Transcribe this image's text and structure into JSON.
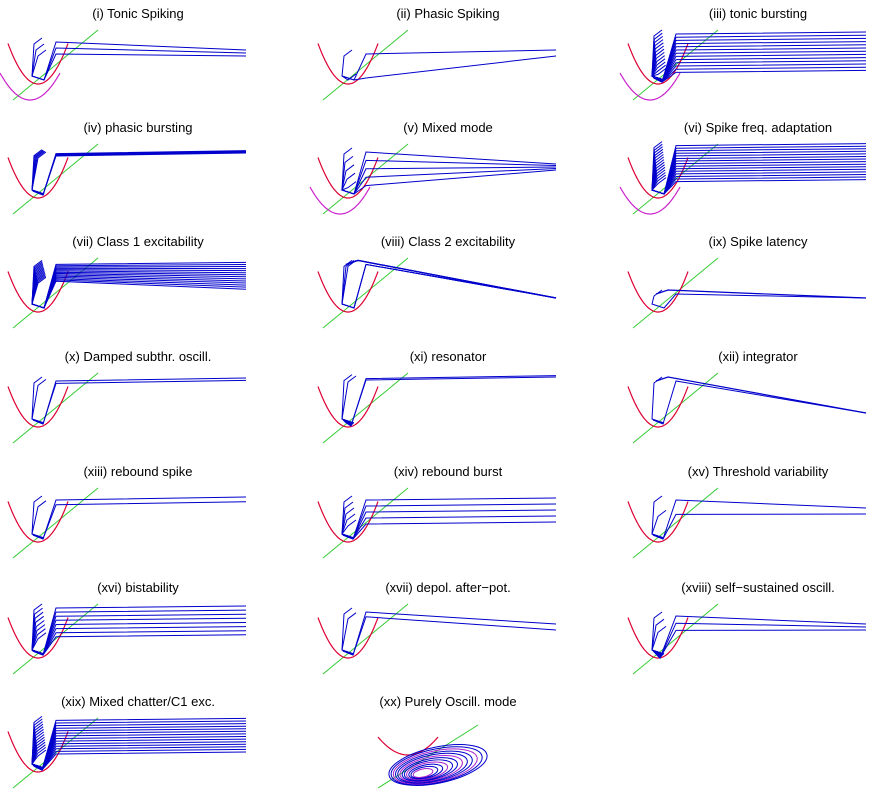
{
  "colors": {
    "trajectory": "#0000cc",
    "v_nullcline": "#dd0033",
    "v_nullcline_alt": "#cc22cc",
    "u_nullcline": "#33cc33",
    "background": "#ffffff"
  },
  "chart_data": [
    {
      "type": "line",
      "title": "(i) Tonic Spiking",
      "trajectory_count": 3,
      "spread": 0.25,
      "reset_level": 0.85,
      "tail_shape": "converge",
      "secondary_nullcline": true,
      "loops": 0
    },
    {
      "type": "line",
      "title": "(ii) Phasic Spiking",
      "trajectory_count": 2,
      "spread": 0.5,
      "reset_level": 0.7,
      "tail_shape": "converge",
      "secondary_nullcline": false,
      "loops": 0
    },
    {
      "type": "line",
      "title": "(iii) tonic bursting",
      "trajectory_count": 13,
      "spread": 0.8,
      "reset_level": 0.95,
      "tail_shape": "parallel",
      "secondary_nullcline": true,
      "loops": 2
    },
    {
      "type": "line",
      "title": "(iv) phasic bursting",
      "trajectory_count": 5,
      "spread": 0.05,
      "reset_level": 0.88,
      "tail_shape": "flat",
      "secondary_nullcline": false,
      "loops": 1
    },
    {
      "type": "line",
      "title": "(v) Mixed mode",
      "trajectory_count": 5,
      "spread": 0.7,
      "reset_level": 0.9,
      "tail_shape": "converge",
      "secondary_nullcline": true,
      "loops": 0
    },
    {
      "type": "line",
      "title": "(vi) Spike freq. adaptation",
      "trajectory_count": 15,
      "spread": 0.75,
      "reset_level": 0.98,
      "tail_shape": "parallel",
      "secondary_nullcline": true,
      "loops": 0
    },
    {
      "type": "line",
      "title": "(vii) Class 1 excitability",
      "trajectory_count": 14,
      "spread": 0.35,
      "reset_level": 0.92,
      "tail_shape": "fan",
      "secondary_nullcline": false,
      "loops": 0
    },
    {
      "type": "line",
      "title": "(viii) Class 2 excitability",
      "trajectory_count": 3,
      "spread": 0.0,
      "reset_level": 0.92,
      "tail_shape": "triangle",
      "secondary_nullcline": false,
      "loops": 0
    },
    {
      "type": "line",
      "title": "(ix) Spike latency",
      "trajectory_count": 1,
      "spread": 0.0,
      "reset_level": 0.55,
      "tail_shape": "triangle",
      "secondary_nullcline": false,
      "loops": 0
    },
    {
      "type": "line",
      "title": "(x) Damped subthr. oscill.",
      "trajectory_count": 2,
      "spread": 0.05,
      "reset_level": 0.9,
      "tail_shape": "flat",
      "secondary_nullcline": false,
      "loops": 1
    },
    {
      "type": "line",
      "title": "(xi) resonator",
      "trajectory_count": 2,
      "spread": 0.03,
      "reset_level": 0.93,
      "tail_shape": "flat",
      "secondary_nullcline": false,
      "loops": 3
    },
    {
      "type": "line",
      "title": "(xii) integrator",
      "trajectory_count": 1,
      "spread": 0.0,
      "reset_level": 0.9,
      "tail_shape": "triangle",
      "secondary_nullcline": false,
      "loops": 1
    },
    {
      "type": "line",
      "title": "(xiii) rebound spike",
      "trajectory_count": 2,
      "spread": 0.1,
      "reset_level": 0.85,
      "tail_shape": "flat",
      "secondary_nullcline": false,
      "loops": 1
    },
    {
      "type": "line",
      "title": "(xiv) rebound burst",
      "trajectory_count": 5,
      "spread": 0.5,
      "reset_level": 0.85,
      "tail_shape": "parallel",
      "secondary_nullcline": false,
      "loops": 1
    },
    {
      "type": "line",
      "title": "(xv) Threshold variability",
      "trajectory_count": 2,
      "spread": 0.3,
      "reset_level": 0.85,
      "tail_shape": "converge",
      "secondary_nullcline": false,
      "loops": 1
    },
    {
      "type": "line",
      "title": "(xvi) bistability",
      "trajectory_count": 8,
      "spread": 0.6,
      "reset_level": 0.95,
      "tail_shape": "parallel",
      "secondary_nullcline": false,
      "loops": 1
    },
    {
      "type": "line",
      "title": "(xvii) depol. after−pot.",
      "trajectory_count": 2,
      "spread": 0.1,
      "reset_level": 0.9,
      "tail_shape": "converge",
      "secondary_nullcline": false,
      "loops": 1
    },
    {
      "type": "line",
      "title": "(xviii) self−sustained oscill.",
      "trajectory_count": 3,
      "spread": 0.3,
      "reset_level": 0.85,
      "tail_shape": "converge",
      "secondary_nullcline": false,
      "loops": 4
    },
    {
      "type": "line",
      "title": "(xix) Mixed chatter/C1 exc.",
      "trajectory_count": 14,
      "spread": 0.7,
      "reset_level": 0.97,
      "tail_shape": "parallel",
      "secondary_nullcline": false,
      "loops": 2
    },
    {
      "type": "line",
      "title": "(xx) Purely Oscill. mode",
      "trajectory_count": 12,
      "spread": 0.0,
      "reset_level": 0.5,
      "tail_shape": "ellipse",
      "secondary_nullcline": false,
      "loops": 12
    }
  ]
}
